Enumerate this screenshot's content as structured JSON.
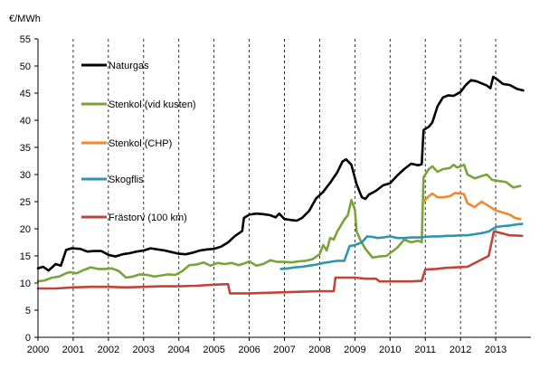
{
  "chart_data": {
    "type": "line",
    "title": "",
    "unit_label": "€/MWh",
    "xlabel": "",
    "ylabel": "€/MWh",
    "ylim": [
      0,
      55
    ],
    "xlim": [
      2000,
      2014
    ],
    "y_ticks": [
      0,
      5,
      10,
      15,
      20,
      25,
      30,
      35,
      40,
      45,
      50,
      55
    ],
    "x_tick_labels": [
      "2000",
      "2001",
      "2002",
      "2003",
      "2004",
      "2005",
      "2006",
      "2007",
      "2008",
      "2009",
      "2010",
      "2011",
      "2012",
      "2013"
    ],
    "grid": "dashed vertical lines at year boundaries",
    "legend_placement": "upper-left inside plot",
    "series": [
      {
        "name": "Naturgas",
        "color": "#000000",
        "points": [
          [
            2000.0,
            12.7
          ],
          [
            2000.15,
            13.0
          ],
          [
            2000.3,
            12.3
          ],
          [
            2000.5,
            13.5
          ],
          [
            2000.65,
            13.2
          ],
          [
            2000.8,
            16.1
          ],
          [
            2000.95,
            16.4
          ],
          [
            2001.2,
            16.3
          ],
          [
            2001.4,
            15.8
          ],
          [
            2001.6,
            15.9
          ],
          [
            2001.8,
            15.9
          ],
          [
            2002.0,
            15.2
          ],
          [
            2002.2,
            14.9
          ],
          [
            2002.4,
            15.3
          ],
          [
            2002.6,
            15.5
          ],
          [
            2002.8,
            15.8
          ],
          [
            2003.0,
            16.0
          ],
          [
            2003.2,
            16.4
          ],
          [
            2003.4,
            16.2
          ],
          [
            2003.6,
            16.0
          ],
          [
            2003.8,
            15.7
          ],
          [
            2004.0,
            15.4
          ],
          [
            2004.2,
            15.3
          ],
          [
            2004.4,
            15.6
          ],
          [
            2004.6,
            16.0
          ],
          [
            2004.8,
            16.2
          ],
          [
            2005.0,
            16.3
          ],
          [
            2005.2,
            16.7
          ],
          [
            2005.4,
            17.5
          ],
          [
            2005.6,
            18.7
          ],
          [
            2005.8,
            19.6
          ],
          [
            2005.85,
            22.0
          ],
          [
            2006.0,
            22.6
          ],
          [
            2006.2,
            22.8
          ],
          [
            2006.4,
            22.7
          ],
          [
            2006.6,
            22.5
          ],
          [
            2006.75,
            22.1
          ],
          [
            2006.85,
            22.8
          ],
          [
            2007.0,
            21.8
          ],
          [
            2007.2,
            21.6
          ],
          [
            2007.35,
            21.5
          ],
          [
            2007.5,
            22.0
          ],
          [
            2007.7,
            23.3
          ],
          [
            2007.9,
            25.6
          ],
          [
            2008.1,
            26.8
          ],
          [
            2008.3,
            28.5
          ],
          [
            2008.5,
            30.4
          ],
          [
            2008.65,
            32.4
          ],
          [
            2008.75,
            32.8
          ],
          [
            2008.9,
            31.8
          ],
          [
            2009.05,
            28.2
          ],
          [
            2009.2,
            25.8
          ],
          [
            2009.3,
            25.5
          ],
          [
            2009.4,
            26.3
          ],
          [
            2009.6,
            27.0
          ],
          [
            2009.8,
            28.0
          ],
          [
            2010.0,
            28.4
          ],
          [
            2010.2,
            29.8
          ],
          [
            2010.4,
            31.0
          ],
          [
            2010.6,
            32.0
          ],
          [
            2010.8,
            31.7
          ],
          [
            2010.9,
            31.9
          ],
          [
            2010.95,
            38.2
          ],
          [
            2011.1,
            38.8
          ],
          [
            2011.2,
            39.6
          ],
          [
            2011.35,
            42.6
          ],
          [
            2011.5,
            44.2
          ],
          [
            2011.65,
            44.6
          ],
          [
            2011.8,
            44.5
          ],
          [
            2012.0,
            45.2
          ],
          [
            2012.15,
            46.5
          ],
          [
            2012.3,
            47.4
          ],
          [
            2012.45,
            47.2
          ],
          [
            2012.6,
            46.8
          ],
          [
            2012.75,
            46.4
          ],
          [
            2012.85,
            45.9
          ],
          [
            2012.93,
            48.0
          ],
          [
            2013.05,
            47.5
          ],
          [
            2013.2,
            46.7
          ],
          [
            2013.4,
            46.5
          ],
          [
            2013.6,
            45.8
          ],
          [
            2013.78,
            45.5
          ]
        ]
      },
      {
        "name": "Stenkol (vid kusten)",
        "color": "#7aa33a",
        "points": [
          [
            2000.0,
            10.3
          ],
          [
            2000.2,
            10.5
          ],
          [
            2000.4,
            11.0
          ],
          [
            2000.6,
            11.2
          ],
          [
            2000.8,
            11.8
          ],
          [
            2000.9,
            12.0
          ],
          [
            2001.1,
            11.8
          ],
          [
            2001.3,
            12.4
          ],
          [
            2001.5,
            12.9
          ],
          [
            2001.7,
            12.6
          ],
          [
            2001.9,
            12.6
          ],
          [
            2002.1,
            12.7
          ],
          [
            2002.3,
            12.2
          ],
          [
            2002.5,
            11.0
          ],
          [
            2002.7,
            11.2
          ],
          [
            2002.9,
            11.6
          ],
          [
            2003.1,
            11.5
          ],
          [
            2003.3,
            11.2
          ],
          [
            2003.5,
            11.4
          ],
          [
            2003.7,
            11.6
          ],
          [
            2003.9,
            11.5
          ],
          [
            2004.1,
            12.2
          ],
          [
            2004.3,
            13.3
          ],
          [
            2004.5,
            13.4
          ],
          [
            2004.7,
            13.8
          ],
          [
            2004.9,
            13.2
          ],
          [
            2005.1,
            13.7
          ],
          [
            2005.3,
            13.5
          ],
          [
            2005.5,
            13.7
          ],
          [
            2005.7,
            13.3
          ],
          [
            2005.9,
            13.7
          ],
          [
            2006.0,
            14.0
          ],
          [
            2006.2,
            13.2
          ],
          [
            2006.4,
            13.5
          ],
          [
            2006.6,
            14.2
          ],
          [
            2006.8,
            13.9
          ],
          [
            2007.0,
            13.9
          ],
          [
            2007.2,
            13.8
          ],
          [
            2007.4,
            14.0
          ],
          [
            2007.6,
            14.1
          ],
          [
            2007.8,
            14.4
          ],
          [
            2008.0,
            15.3
          ],
          [
            2008.1,
            17.0
          ],
          [
            2008.2,
            16.0
          ],
          [
            2008.3,
            18.3
          ],
          [
            2008.4,
            18.0
          ],
          [
            2008.5,
            19.5
          ],
          [
            2008.7,
            21.7
          ],
          [
            2008.8,
            22.5
          ],
          [
            2008.9,
            25.3
          ],
          [
            2009.0,
            23.5
          ],
          [
            2009.05,
            19.5
          ],
          [
            2009.15,
            18.0
          ],
          [
            2009.3,
            16.3
          ],
          [
            2009.5,
            14.7
          ],
          [
            2009.7,
            14.9
          ],
          [
            2009.9,
            15.0
          ],
          [
            2010.0,
            15.5
          ],
          [
            2010.2,
            16.5
          ],
          [
            2010.4,
            18.0
          ],
          [
            2010.6,
            17.5
          ],
          [
            2010.8,
            17.8
          ],
          [
            2010.9,
            17.5
          ],
          [
            2010.95,
            29.5
          ],
          [
            2011.1,
            31.0
          ],
          [
            2011.2,
            31.5
          ],
          [
            2011.35,
            30.5
          ],
          [
            2011.5,
            31.0
          ],
          [
            2011.7,
            31.2
          ],
          [
            2011.8,
            31.8
          ],
          [
            2011.9,
            31.3
          ],
          [
            2012.0,
            31.5
          ],
          [
            2012.1,
            31.8
          ],
          [
            2012.2,
            30.0
          ],
          [
            2012.4,
            29.3
          ],
          [
            2012.6,
            29.7
          ],
          [
            2012.75,
            30.0
          ],
          [
            2012.9,
            29.0
          ],
          [
            2013.1,
            28.8
          ],
          [
            2013.3,
            28.6
          ],
          [
            2013.5,
            27.6
          ],
          [
            2013.7,
            27.9
          ]
        ]
      },
      {
        "name": "Stenkol (CHP)",
        "color": "#f0892e",
        "points": [
          [
            2010.95,
            25.0
          ],
          [
            2011.1,
            26.0
          ],
          [
            2011.2,
            26.5
          ],
          [
            2011.35,
            25.8
          ],
          [
            2011.5,
            25.8
          ],
          [
            2011.7,
            26.0
          ],
          [
            2011.85,
            26.6
          ],
          [
            2012.0,
            26.5
          ],
          [
            2012.1,
            26.4
          ],
          [
            2012.2,
            24.7
          ],
          [
            2012.4,
            24.0
          ],
          [
            2012.6,
            25.0
          ],
          [
            2012.8,
            24.2
          ],
          [
            2013.0,
            23.4
          ],
          [
            2013.2,
            23.0
          ],
          [
            2013.4,
            22.6
          ],
          [
            2013.55,
            22.0
          ],
          [
            2013.7,
            21.8
          ]
        ]
      },
      {
        "name": "Skogflis",
        "color": "#2d95b0",
        "points": [
          [
            2006.9,
            12.6
          ],
          [
            2007.1,
            12.7
          ],
          [
            2007.3,
            12.9
          ],
          [
            2007.5,
            13.0
          ],
          [
            2007.7,
            13.2
          ],
          [
            2007.9,
            13.4
          ],
          [
            2008.1,
            13.7
          ],
          [
            2008.3,
            13.9
          ],
          [
            2008.5,
            14.1
          ],
          [
            2008.7,
            14.1
          ],
          [
            2008.85,
            16.8
          ],
          [
            2009.0,
            17.0
          ],
          [
            2009.2,
            17.5
          ],
          [
            2009.35,
            18.6
          ],
          [
            2009.5,
            18.5
          ],
          [
            2009.65,
            18.3
          ],
          [
            2009.8,
            18.4
          ],
          [
            2010.0,
            18.6
          ],
          [
            2010.2,
            18.3
          ],
          [
            2010.4,
            18.3
          ],
          [
            2010.6,
            18.4
          ],
          [
            2010.8,
            18.4
          ],
          [
            2011.0,
            18.5
          ],
          [
            2011.2,
            18.6
          ],
          [
            2011.4,
            18.6
          ],
          [
            2011.6,
            18.7
          ],
          [
            2011.8,
            18.7
          ],
          [
            2012.0,
            18.8
          ],
          [
            2012.2,
            18.8
          ],
          [
            2012.4,
            19.0
          ],
          [
            2012.6,
            19.2
          ],
          [
            2012.8,
            19.5
          ],
          [
            2013.0,
            20.3
          ],
          [
            2013.2,
            20.5
          ],
          [
            2013.4,
            20.6
          ],
          [
            2013.6,
            20.8
          ],
          [
            2013.75,
            20.9
          ]
        ]
      },
      {
        "name": "Frästorv (100 km)",
        "color": "#c0443a",
        "points": [
          [
            2000.0,
            9.0
          ],
          [
            2000.5,
            9.0
          ],
          [
            2001.0,
            9.2
          ],
          [
            2001.5,
            9.3
          ],
          [
            2002.0,
            9.3
          ],
          [
            2002.5,
            9.2
          ],
          [
            2003.0,
            9.3
          ],
          [
            2003.5,
            9.4
          ],
          [
            2004.0,
            9.4
          ],
          [
            2004.5,
            9.5
          ],
          [
            2005.0,
            9.7
          ],
          [
            2005.4,
            9.8
          ],
          [
            2005.45,
            8.1
          ],
          [
            2006.0,
            8.1
          ],
          [
            2006.5,
            8.2
          ],
          [
            2007.0,
            8.3
          ],
          [
            2007.5,
            8.4
          ],
          [
            2008.0,
            8.5
          ],
          [
            2008.4,
            8.5
          ],
          [
            2008.45,
            11.0
          ],
          [
            2009.0,
            11.0
          ],
          [
            2009.3,
            10.8
          ],
          [
            2009.6,
            10.8
          ],
          [
            2009.7,
            10.3
          ],
          [
            2010.2,
            10.3
          ],
          [
            2010.6,
            10.3
          ],
          [
            2010.9,
            10.4
          ],
          [
            2011.0,
            12.5
          ],
          [
            2011.3,
            12.6
          ],
          [
            2011.6,
            12.8
          ],
          [
            2011.9,
            12.9
          ],
          [
            2012.2,
            13.0
          ],
          [
            2012.5,
            14.0
          ],
          [
            2012.8,
            15.0
          ],
          [
            2012.95,
            19.5
          ],
          [
            2013.1,
            19.3
          ],
          [
            2013.4,
            18.8
          ],
          [
            2013.75,
            18.7
          ]
        ]
      }
    ]
  }
}
